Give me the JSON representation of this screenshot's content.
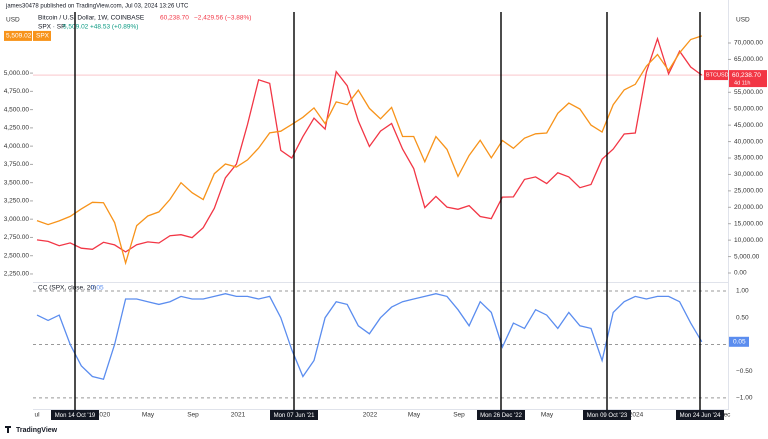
{
  "header": {
    "publisher": "james30478 published on TradingView.com, Jul 03, 2024 13:26 UTC",
    "symbol1": "Bitcoin / U.S. Dollar, 1W, COINBASE",
    "symbol1_price": "60,238.70",
    "symbol1_change": "−2,429.56 (−3.88%)",
    "symbol2": "SPX · SP",
    "symbol2_price": "5,509.02",
    "symbol2_change": "+48.53 (+0.89%)"
  },
  "footer": {
    "brand": "TradingView"
  },
  "chart_data": [
    {
      "type": "line",
      "y_label": "USD",
      "y2_label": "USD",
      "ylim": [
        2140,
        5590
      ],
      "y2lim": [
        -2740,
        73960
      ],
      "yticks": [
        {
          "value": 5000,
          "label": "5,000.00"
        },
        {
          "value": 4750,
          "label": "4,750.00"
        },
        {
          "value": 4500,
          "label": "4,500.00"
        },
        {
          "value": 4250,
          "label": "4,250.00"
        },
        {
          "value": 4000,
          "label": "4,000.00"
        },
        {
          "value": 3750,
          "label": "3,750.00"
        },
        {
          "value": 3500,
          "label": "3,500.00"
        },
        {
          "value": 3250,
          "label": "3,250.00"
        },
        {
          "value": 3000,
          "label": "3,000.00"
        },
        {
          "value": 2750,
          "label": "2,750.00"
        },
        {
          "value": 2500,
          "label": "2,500.00"
        },
        {
          "value": 2250,
          "label": "2,250.00"
        }
      ],
      "y2ticks": [
        {
          "value": 70000,
          "label": "70,000.00"
        },
        {
          "value": 65000,
          "label": "65,000.00"
        },
        {
          "value": 55000,
          "label": "55,000.00"
        },
        {
          "value": 50000,
          "label": "50,000.00"
        },
        {
          "value": 45000,
          "label": "45,000.00"
        },
        {
          "value": 40000,
          "label": "40,000.00"
        },
        {
          "value": 35000,
          "label": "35,000.00"
        },
        {
          "value": 30000,
          "label": "30,000.00"
        },
        {
          "value": 25000,
          "label": "25,000.00"
        },
        {
          "value": 20000,
          "label": "20,000.00"
        },
        {
          "value": 15000,
          "label": "15,000.00"
        },
        {
          "value": 10000,
          "label": "10,000.00"
        },
        {
          "value": 5000,
          "label": "5,000.00"
        },
        {
          "value": 0,
          "label": "0.00"
        }
      ],
      "series": [
        {
          "name": "SPX",
          "color": "#f7931a",
          "last_label": "5,509.02",
          "values": [
            2980,
            2926,
            2977,
            3038,
            3141,
            3231,
            3226,
            2954,
            2400,
            2912,
            3044,
            3100,
            3271,
            3500,
            3363,
            3270,
            3622,
            3756,
            3714,
            3811,
            3973,
            4181,
            4204,
            4298,
            4395,
            4523,
            4308,
            4605,
            4567,
            4766,
            4516,
            4374,
            4530,
            4132,
            4132,
            3785,
            4130,
            3955,
            3586,
            3872,
            4080,
            3840,
            4077,
            3970,
            4109,
            4169,
            4180,
            4450,
            4589,
            4508,
            4288,
            4194,
            4568,
            4770,
            4846,
            5096,
            5254,
            5036,
            5278,
            5460,
            5509.02
          ]
        },
        {
          "name": "BTCUSD",
          "axis": "y2",
          "color": "#f23645",
          "last_label": "60,238.70",
          "countdown": "4d 11h",
          "values": [
            10085,
            9630,
            8300,
            9150,
            7560,
            7200,
            9350,
            8540,
            6420,
            8620,
            9450,
            9140,
            11350,
            11650,
            10780,
            13800,
            19700,
            28990,
            33100,
            45200,
            58800,
            57700,
            37300,
            35000,
            41500,
            47100,
            43800,
            61300,
            57000,
            46300,
            38500,
            43200,
            45500,
            37700,
            31800,
            19900,
            23300,
            20050,
            19400,
            20500,
            17200,
            16550,
            23100,
            23150,
            28500,
            29250,
            27200,
            30500,
            29250,
            25950,
            26950,
            34650,
            37700,
            42300,
            42600,
            61200,
            71300,
            60600,
            67500,
            62700,
            60238.7
          ]
        }
      ]
    },
    {
      "type": "line",
      "title": "CC (SPX, close, 20)",
      "ylim": [
        -1.17,
        1.15
      ],
      "yticks": [
        {
          "value": 1,
          "label": "1.00"
        },
        {
          "value": 0.5,
          "label": "0.50"
        },
        {
          "value": -0.5,
          "label": "−0.50"
        },
        {
          "value": -1,
          "label": "−1.00"
        }
      ],
      "series": [
        {
          "name": "CC",
          "color": "#5b8def",
          "values": [
            0.55,
            0.45,
            0.55,
            0.0,
            -0.4,
            -0.6,
            -0.65,
            0.0,
            0.85,
            0.85,
            0.8,
            0.75,
            0.8,
            0.9,
            0.85,
            0.85,
            0.9,
            0.95,
            0.9,
            0.9,
            0.85,
            0.9,
            0.5,
            -0.1,
            -0.6,
            -0.3,
            0.5,
            0.8,
            0.75,
            0.35,
            0.2,
            0.5,
            0.7,
            0.8,
            0.85,
            0.9,
            0.95,
            0.9,
            0.65,
            0.35,
            0.8,
            0.6,
            -0.05,
            0.4,
            0.3,
            0.65,
            0.55,
            0.3,
            0.6,
            0.35,
            0.3,
            -0.3,
            0.6,
            0.8,
            0.9,
            0.85,
            0.9,
            0.9,
            0.8,
            0.4,
            0.05
          ]
        }
      ],
      "x_labels": [
        "ul",
        "2020",
        "May",
        "Sep",
        "2021",
        "2022",
        "May",
        "Sep",
        "May",
        "2024",
        "ec"
      ],
      "markers": [
        "Mon 14 Oct '19",
        "Mon 07 Jun '21",
        "Mon 26 Dec '22",
        "Mon 09 Oct '23",
        "Mon 24 Jun '24"
      ]
    }
  ]
}
